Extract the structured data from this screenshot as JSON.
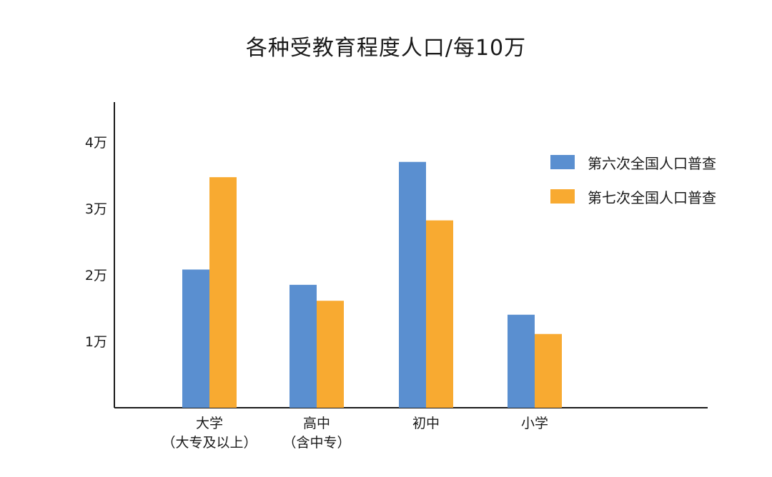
{
  "chart_data": {
    "type": "bar",
    "title": "各种受教育程度人口/每10万",
    "categories": [
      {
        "line1": "大学",
        "line2": "（大专及以上）"
      },
      {
        "line1": "高中",
        "line2": "（含中专）"
      },
      {
        "line1": "初中",
        "line2": ""
      },
      {
        "line1": "小学",
        "line2": ""
      }
    ],
    "series": [
      {
        "name": "第六次全国人口普查",
        "color": "#5a8fd0",
        "values": [
          20800,
          18500,
          37000,
          14000
        ]
      },
      {
        "name": "第七次全国人口普查",
        "color": "#f8aa31",
        "values": [
          34700,
          16100,
          28200,
          11100
        ]
      }
    ],
    "yticks": [
      {
        "value": 10000,
        "label": "1万"
      },
      {
        "value": 20000,
        "label": "2万"
      },
      {
        "value": 30000,
        "label": "3万"
      },
      {
        "value": 40000,
        "label": "4万"
      }
    ],
    "ylim": [
      0,
      46000
    ],
    "grid": false,
    "legend_position": "right"
  }
}
